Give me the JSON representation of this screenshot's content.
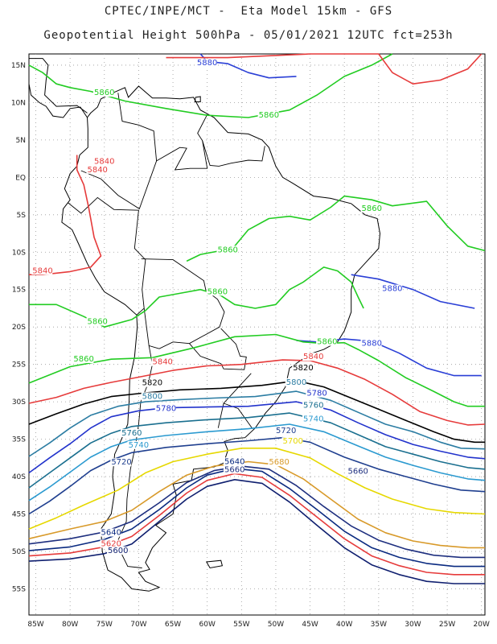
{
  "header": {
    "line1": "CPTEC/INPE/MCT -  Eta Model 15km - GFS",
    "line2": "Geopotential Height 500hPa - 05/01/2021 12UTC fct=253h"
  },
  "axes": {
    "lat_labels": [
      "15N",
      "10N",
      "5N",
      "EQ",
      "5S",
      "10S",
      "15S",
      "20S",
      "25S",
      "30S",
      "35S",
      "40S",
      "45S",
      "50S",
      "55S"
    ],
    "lon_labels": [
      "85W",
      "80W",
      "75W",
      "70W",
      "65W",
      "60W",
      "55W",
      "50W",
      "45W",
      "40W",
      "35W",
      "30W",
      "25W",
      "20W"
    ],
    "grid": true
  },
  "contours": [
    {
      "value": "5880",
      "color": "#2a3fd6"
    },
    {
      "value": "5860",
      "color": "#22cc22"
    },
    {
      "value": "5840",
      "color": "#e63b3b"
    },
    {
      "value": "5820",
      "color": "#000000"
    },
    {
      "value": "5800",
      "color": "#2c7da3"
    },
    {
      "value": "5780",
      "color": "#2233cc"
    },
    {
      "value": "5760",
      "color": "#1a6f8f"
    },
    {
      "value": "5740",
      "color": "#2b9ad0"
    },
    {
      "value": "5720",
      "color": "#1f3f8f"
    },
    {
      "value": "5700",
      "color": "#e6d800"
    },
    {
      "value": "5680",
      "color": "#d89a2a"
    },
    {
      "value": "5660",
      "color": "#1e2f7f"
    },
    {
      "value": "5640",
      "color": "#0a2a80"
    },
    {
      "value": "5620",
      "color": "#e63b3b"
    },
    {
      "value": "5600",
      "color": "#0f1f6f"
    }
  ],
  "contour_labels": [
    {
      "text": "5880",
      "color": "#2a3fd6",
      "lon": -61.5,
      "lat": 15.0
    },
    {
      "text": "5860",
      "color": "#22cc22",
      "lon": -76.5,
      "lat": 11.0
    },
    {
      "text": "5860",
      "color": "#22cc22",
      "lon": -52.5,
      "lat": 8.0
    },
    {
      "text": "5840",
      "color": "#e63b3b",
      "lon": -76.5,
      "lat": 1.8
    },
    {
      "text": "5840",
      "color": "#e63b3b",
      "lon": -77.5,
      "lat": 0.7
    },
    {
      "text": "5860",
      "color": "#22cc22",
      "lon": -37.5,
      "lat": -4.5
    },
    {
      "text": "5860",
      "color": "#22cc22",
      "lon": -58.5,
      "lat": -10.0
    },
    {
      "text": "5840",
      "color": "#e63b3b",
      "lon": -85.5,
      "lat": -12.8
    },
    {
      "text": "5860",
      "color": "#22cc22",
      "lon": -60.0,
      "lat": -15.6
    },
    {
      "text": "5880",
      "color": "#2a3fd6",
      "lon": -34.5,
      "lat": -15.2
    },
    {
      "text": "5860",
      "color": "#22cc22",
      "lon": -77.5,
      "lat": -19.6
    },
    {
      "text": "5860",
      "color": "#22cc22",
      "lon": -44.0,
      "lat": -22.3
    },
    {
      "text": "5880",
      "color": "#2a3fd6",
      "lon": -37.5,
      "lat": -22.5
    },
    {
      "text": "5860",
      "color": "#22cc22",
      "lon": -79.5,
      "lat": -24.6
    },
    {
      "text": "5840",
      "color": "#e63b3b",
      "lon": -68.0,
      "lat": -25.0
    },
    {
      "text": "5840",
      "color": "#e63b3b",
      "lon": -46.0,
      "lat": -24.3
    },
    {
      "text": "5820",
      "color": "#000000",
      "lon": -47.5,
      "lat": -25.8
    },
    {
      "text": "5820",
      "color": "#000000",
      "lon": -69.5,
      "lat": -27.8
    },
    {
      "text": "5800",
      "color": "#2c7da3",
      "lon": -48.5,
      "lat": -27.7
    },
    {
      "text": "5780",
      "color": "#2233cc",
      "lon": -45.5,
      "lat": -29.2
    },
    {
      "text": "5800",
      "color": "#2c7da3",
      "lon": -69.5,
      "lat": -29.6
    },
    {
      "text": "5760",
      "color": "#1a6f8f",
      "lon": -46.0,
      "lat": -30.8
    },
    {
      "text": "5780",
      "color": "#2233cc",
      "lon": -67.5,
      "lat": -31.2
    },
    {
      "text": "5740",
      "color": "#2b9ad0",
      "lon": -46.0,
      "lat": -32.6
    },
    {
      "text": "5720",
      "color": "#1f3f8f",
      "lon": -50.0,
      "lat": -34.2
    },
    {
      "text": "5760",
      "color": "#1a6f8f",
      "lon": -72.5,
      "lat": -34.5
    },
    {
      "text": "5700",
      "color": "#e6d800",
      "lon": -49.0,
      "lat": -35.6
    },
    {
      "text": "5740",
      "color": "#2b9ad0",
      "lon": -71.5,
      "lat": -36.1
    },
    {
      "text": "5680",
      "color": "#d89a2a",
      "lon": -51.0,
      "lat": -38.4
    },
    {
      "text": "5640",
      "color": "#0a2a80",
      "lon": -57.5,
      "lat": -38.3
    },
    {
      "text": "5660",
      "color": "#1e2f7f",
      "lon": -57.5,
      "lat": -39.4
    },
    {
      "text": "5720",
      "color": "#1f3f8f",
      "lon": -74.0,
      "lat": -38.4
    },
    {
      "text": "5660",
      "color": "#1e2f7f",
      "lon": -39.5,
      "lat": -39.6
    },
    {
      "text": "5640",
      "color": "#0a2a80",
      "lon": -75.5,
      "lat": -47.8
    },
    {
      "text": "5620",
      "color": "#e63b3b",
      "lon": -75.5,
      "lat": -49.3
    },
    {
      "text": "5600",
      "color": "#0f1f6f",
      "lon": -74.5,
      "lat": -50.2
    }
  ]
}
